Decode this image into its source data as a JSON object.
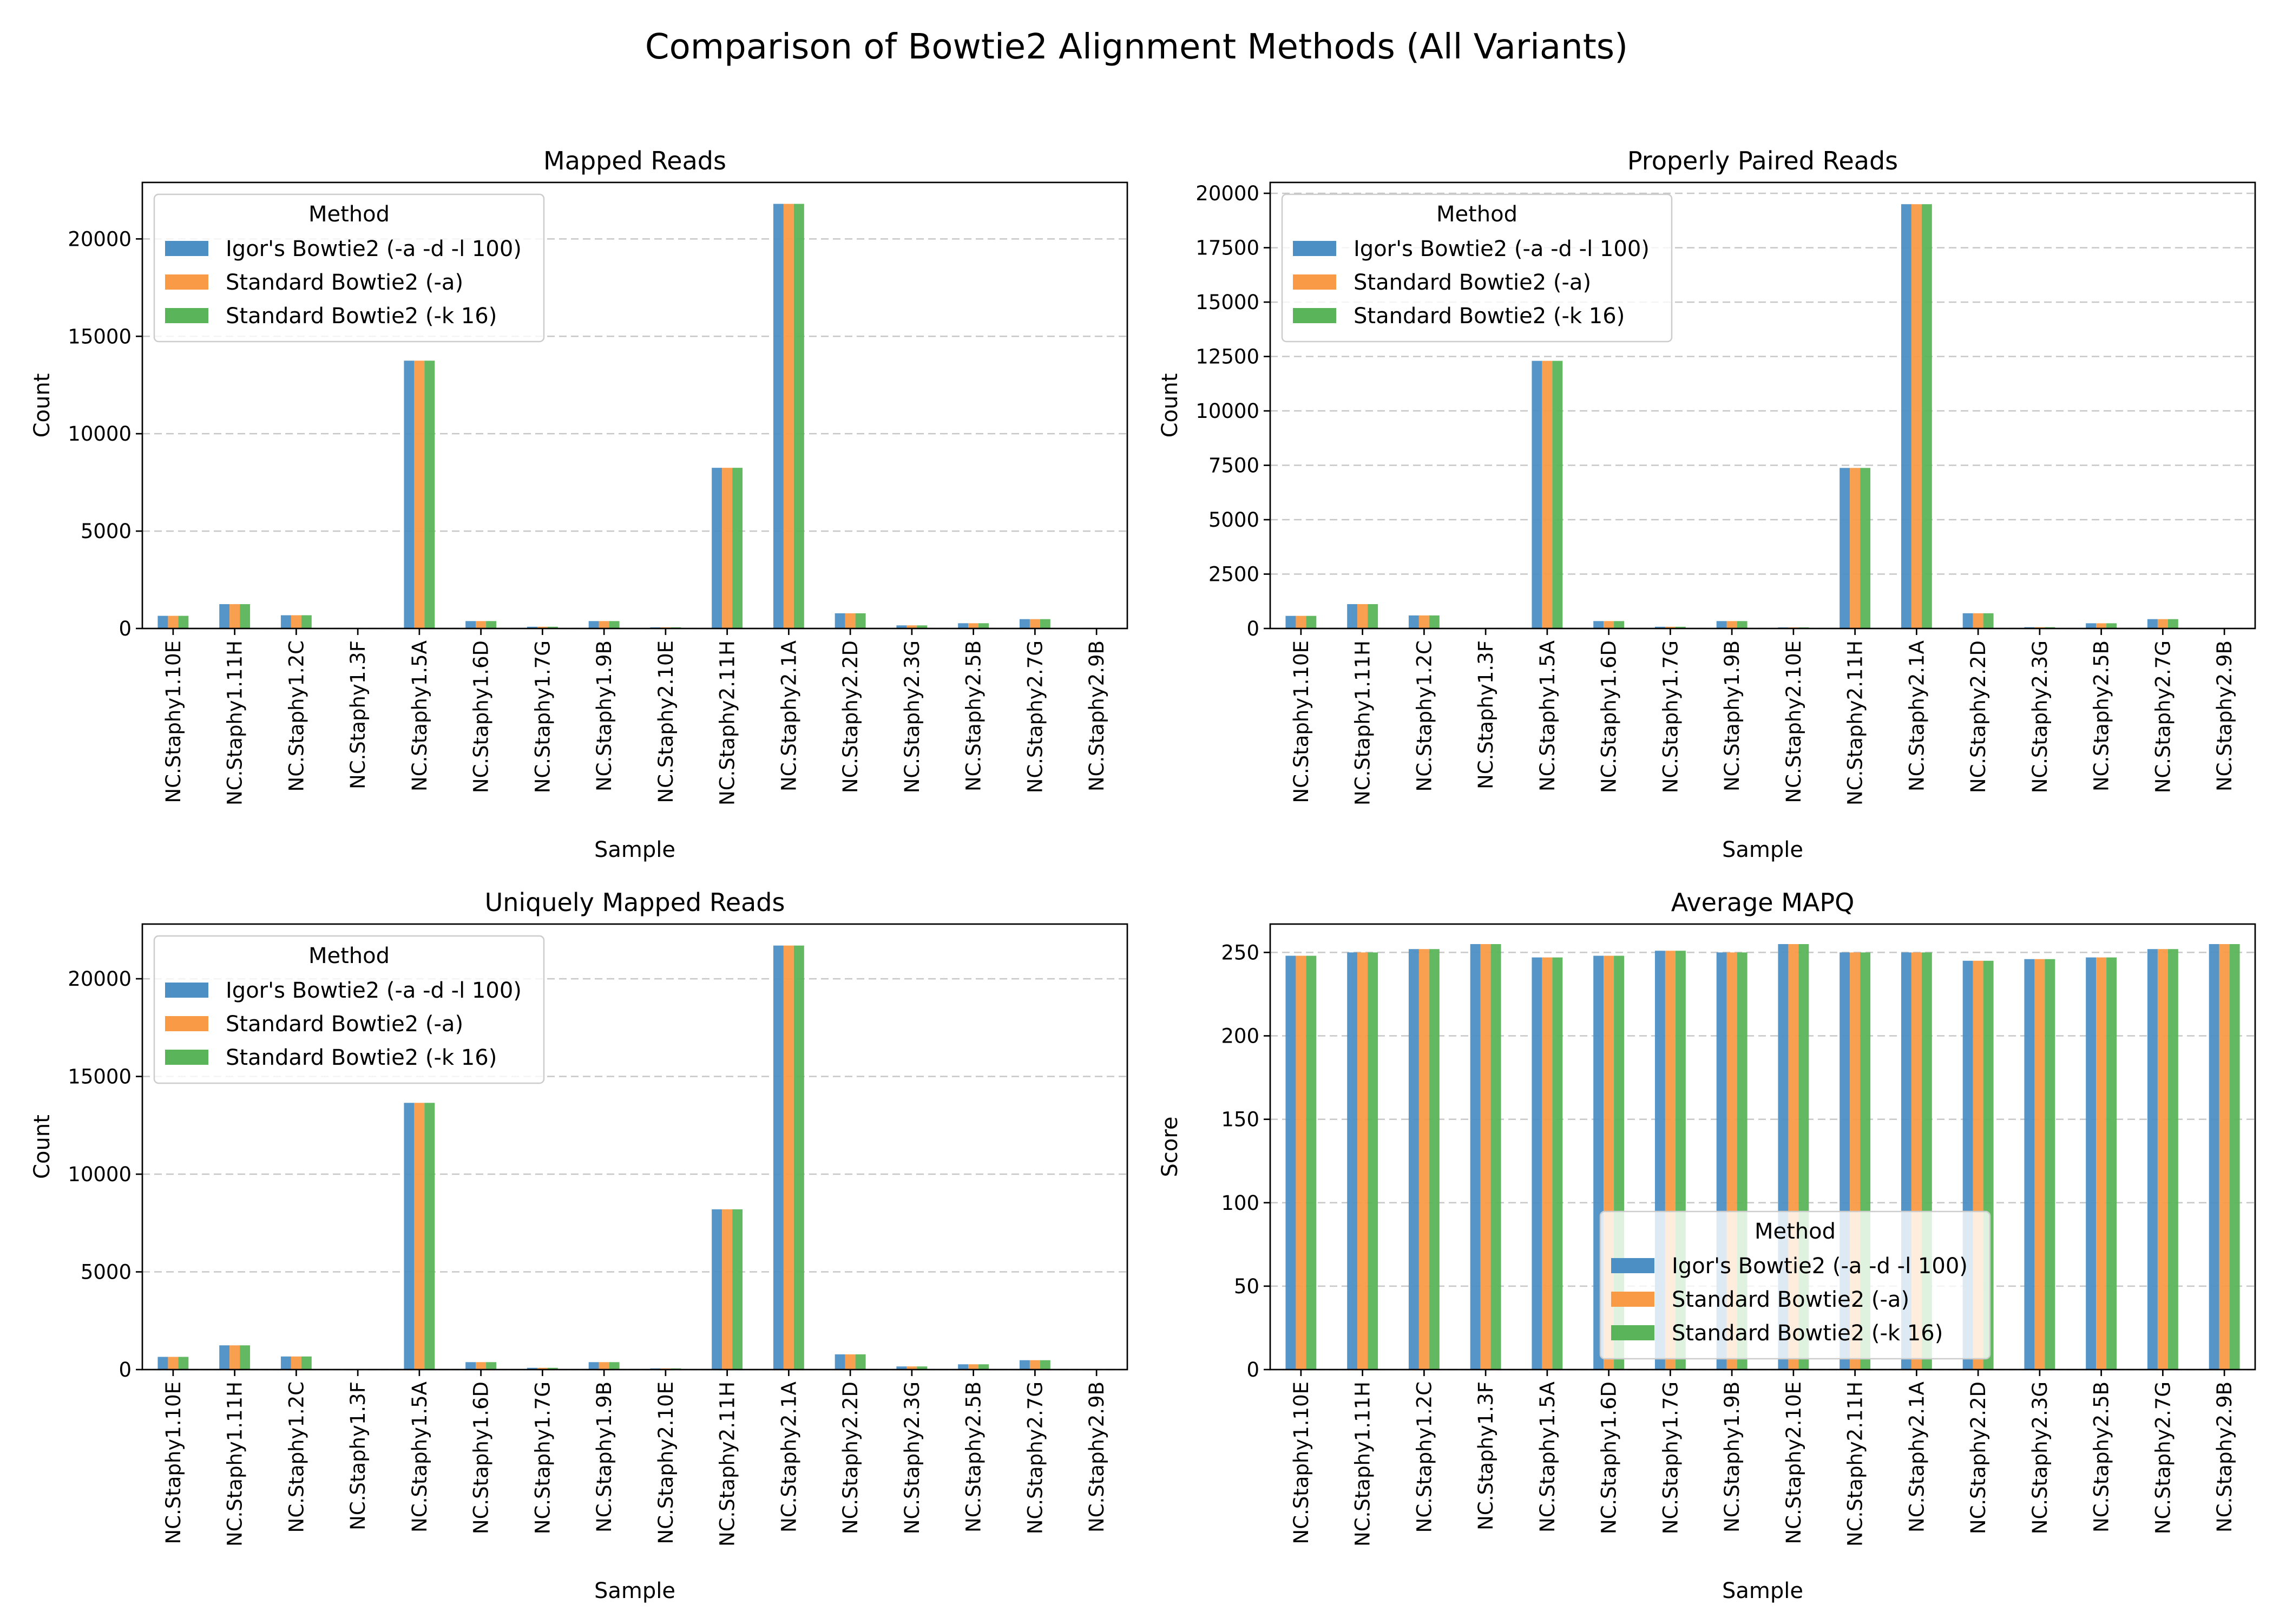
{
  "figure": {
    "title": "Comparison of Bowtie2 Alignment Methods (All Variants)"
  },
  "colors": {
    "series": [
      "#4c8fc4",
      "#f99a47",
      "#5ab55a"
    ]
  },
  "chart_data": [
    {
      "type": "bar",
      "title": "Mapped Reads",
      "xlabel": "Sample",
      "ylabel": "Count",
      "ylim": [
        0,
        22900
      ],
      "yticks": [
        0,
        5000,
        10000,
        15000,
        20000
      ],
      "grid": "y-dashed",
      "legend": {
        "title": "Method",
        "placement": "top-left"
      },
      "categories": [
        "NC.Staphy1.10E",
        "NC.Staphy1.11H",
        "NC.Staphy1.2C",
        "NC.Staphy1.3F",
        "NC.Staphy1.5A",
        "NC.Staphy1.6D",
        "NC.Staphy1.7G",
        "NC.Staphy1.9B",
        "NC.Staphy2.10E",
        "NC.Staphy2.11H",
        "NC.Staphy2.1A",
        "NC.Staphy2.2D",
        "NC.Staphy2.3G",
        "NC.Staphy2.5B",
        "NC.Staphy2.7G",
        "NC.Staphy2.9B"
      ],
      "series": [
        {
          "name": "Igor's Bowtie2 (-a -d -l 100)",
          "values": [
            650,
            1250,
            680,
            10,
            13750,
            380,
            90,
            380,
            60,
            8250,
            21800,
            780,
            160,
            270,
            480,
            15
          ]
        },
        {
          "name": "Standard Bowtie2 (-a)",
          "values": [
            650,
            1250,
            680,
            10,
            13750,
            380,
            90,
            380,
            60,
            8250,
            21800,
            780,
            160,
            270,
            480,
            15
          ]
        },
        {
          "name": "Standard Bowtie2 (-k 16)",
          "values": [
            650,
            1250,
            680,
            10,
            13750,
            380,
            90,
            380,
            60,
            8250,
            21800,
            780,
            160,
            270,
            480,
            15
          ]
        }
      ]
    },
    {
      "type": "bar",
      "title": "Properly Paired Reads",
      "xlabel": "Sample",
      "ylabel": "Count",
      "ylim": [
        0,
        20500
      ],
      "yticks": [
        0,
        2500,
        5000,
        7500,
        10000,
        12500,
        15000,
        17500,
        20000
      ],
      "grid": "y-dashed",
      "legend": {
        "title": "Method",
        "placement": "top-left"
      },
      "categories": [
        "NC.Staphy1.10E",
        "NC.Staphy1.11H",
        "NC.Staphy1.2C",
        "NC.Staphy1.3F",
        "NC.Staphy1.5A",
        "NC.Staphy1.6D",
        "NC.Staphy1.7G",
        "NC.Staphy1.9B",
        "NC.Staphy2.10E",
        "NC.Staphy2.11H",
        "NC.Staphy2.1A",
        "NC.Staphy2.2D",
        "NC.Staphy2.3G",
        "NC.Staphy2.5B",
        "NC.Staphy2.7G",
        "NC.Staphy2.9B"
      ],
      "series": [
        {
          "name": "Igor's Bowtie2 (-a -d -l 100)",
          "values": [
            580,
            1120,
            600,
            10,
            12300,
            340,
            80,
            340,
            50,
            7380,
            19500,
            700,
            60,
            240,
            430,
            10
          ]
        },
        {
          "name": "Standard Bowtie2 (-a)",
          "values": [
            580,
            1120,
            600,
            10,
            12300,
            340,
            80,
            340,
            50,
            7380,
            19500,
            700,
            60,
            240,
            430,
            10
          ]
        },
        {
          "name": "Standard Bowtie2 (-k 16)",
          "values": [
            580,
            1120,
            600,
            10,
            12300,
            340,
            80,
            340,
            50,
            7380,
            19500,
            700,
            60,
            240,
            430,
            10
          ]
        }
      ]
    },
    {
      "type": "bar",
      "title": "Uniquely Mapped Reads",
      "xlabel": "Sample",
      "ylabel": "Count",
      "ylim": [
        0,
        22800
      ],
      "yticks": [
        0,
        5000,
        10000,
        15000,
        20000
      ],
      "grid": "y-dashed",
      "legend": {
        "title": "Method",
        "placement": "top-left"
      },
      "categories": [
        "NC.Staphy1.10E",
        "NC.Staphy1.11H",
        "NC.Staphy1.2C",
        "NC.Staphy1.3F",
        "NC.Staphy1.5A",
        "NC.Staphy1.6D",
        "NC.Staphy1.7G",
        "NC.Staphy1.9B",
        "NC.Staphy2.10E",
        "NC.Staphy2.11H",
        "NC.Staphy2.1A",
        "NC.Staphy2.2D",
        "NC.Staphy2.3G",
        "NC.Staphy2.5B",
        "NC.Staphy2.7G",
        "NC.Staphy2.9B"
      ],
      "series": [
        {
          "name": "Igor's Bowtie2 (-a -d -l 100)",
          "values": [
            650,
            1240,
            670,
            10,
            13650,
            380,
            90,
            380,
            60,
            8200,
            21700,
            780,
            160,
            270,
            480,
            15
          ]
        },
        {
          "name": "Standard Bowtie2 (-a)",
          "values": [
            650,
            1240,
            670,
            10,
            13650,
            380,
            90,
            380,
            60,
            8200,
            21700,
            780,
            160,
            270,
            480,
            15
          ]
        },
        {
          "name": "Standard Bowtie2 (-k 16)",
          "values": [
            650,
            1240,
            670,
            10,
            13650,
            380,
            90,
            380,
            60,
            8200,
            21700,
            780,
            160,
            270,
            480,
            15
          ]
        }
      ]
    },
    {
      "type": "bar",
      "title": "Average MAPQ",
      "xlabel": "Sample",
      "ylabel": "Score",
      "ylim": [
        0,
        267
      ],
      "yticks": [
        0,
        50,
        100,
        150,
        200,
        250
      ],
      "grid": "y-dashed",
      "legend": {
        "title": "Method",
        "placement": "lower-center"
      },
      "categories": [
        "NC.Staphy1.10E",
        "NC.Staphy1.11H",
        "NC.Staphy1.2C",
        "NC.Staphy1.3F",
        "NC.Staphy1.5A",
        "NC.Staphy1.6D",
        "NC.Staphy1.7G",
        "NC.Staphy1.9B",
        "NC.Staphy2.10E",
        "NC.Staphy2.11H",
        "NC.Staphy2.1A",
        "NC.Staphy2.2D",
        "NC.Staphy2.3G",
        "NC.Staphy2.5B",
        "NC.Staphy2.7G",
        "NC.Staphy2.9B"
      ],
      "series": [
        {
          "name": "Igor's Bowtie2 (-a -d -l 100)",
          "values": [
            248,
            250,
            252,
            255,
            247,
            248,
            251,
            250,
            255,
            250,
            250,
            245,
            246,
            247,
            252,
            255
          ]
        },
        {
          "name": "Standard Bowtie2 (-a)",
          "values": [
            248,
            250,
            252,
            255,
            247,
            248,
            251,
            250,
            255,
            250,
            250,
            245,
            246,
            247,
            252,
            255
          ]
        },
        {
          "name": "Standard Bowtie2 (-k 16)",
          "values": [
            248,
            250,
            252,
            255,
            247,
            248,
            251,
            250,
            255,
            250,
            250,
            245,
            246,
            247,
            252,
            255
          ]
        }
      ]
    }
  ]
}
